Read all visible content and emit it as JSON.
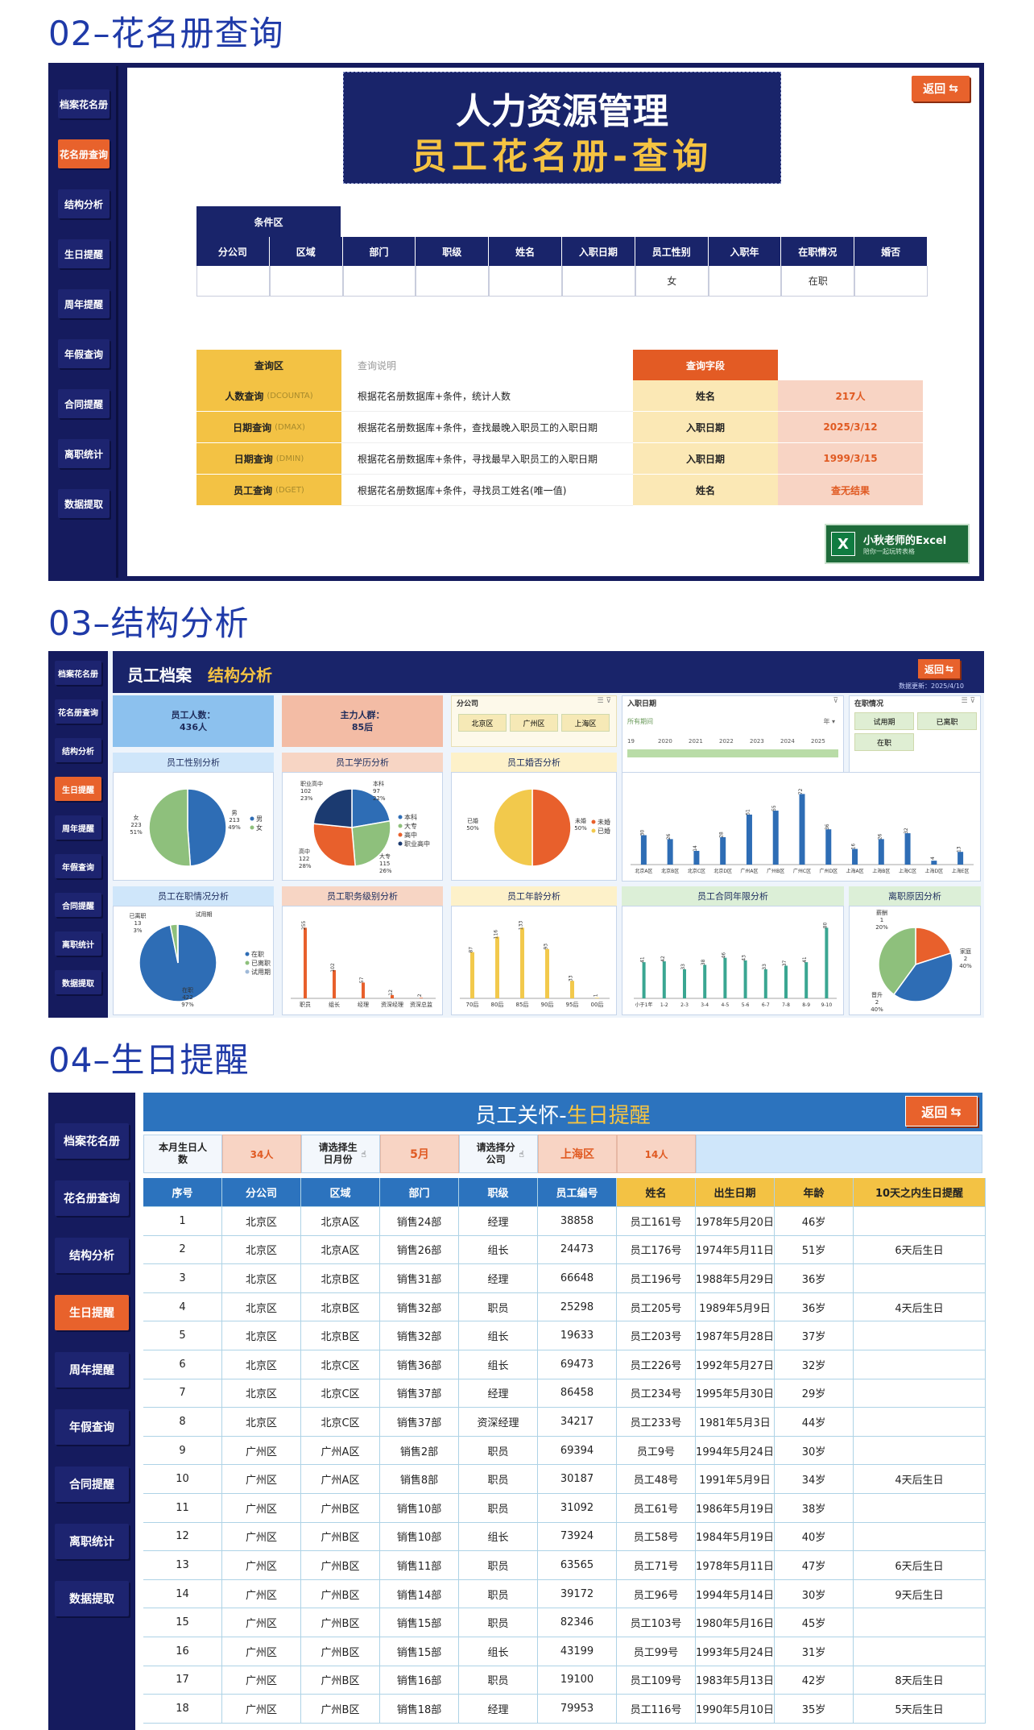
{
  "sections": {
    "s2": "02–花名册查询",
    "s3": "03–结构分析",
    "s4": "04–生日提醒"
  },
  "sidebar": [
    "档案花名册",
    "花名册查询",
    "结构分析",
    "生日提醒",
    "周年提醒",
    "年假查询",
    "合同提醒",
    "离职统计",
    "数据提取"
  ],
  "roster": {
    "title1": "人力资源管理",
    "title2": "员工花名册-查询",
    "back": "返回",
    "cond_label": "条件区",
    "cond_headers": [
      "分公司",
      "区域",
      "部门",
      "职级",
      "姓名",
      "入职日期",
      "员工性别",
      "入职年",
      "在职情况",
      "婚否"
    ],
    "cond_values": [
      "",
      "",
      "",
      "",
      "",
      "",
      "女",
      "",
      "在职",
      ""
    ],
    "q_header": "查询区",
    "q_desc_header": "查询说明",
    "q_field_header": "查询字段",
    "queries": [
      {
        "name": "人数查询",
        "fn": "(DCOUNTA)",
        "desc": "根据花名册数据库+条件，统计人数",
        "field": "姓名",
        "result": "217人"
      },
      {
        "name": "日期查询",
        "fn": "(DMAX)",
        "desc": "根据花名册数据库+条件，查找最晚入职员工的入职日期",
        "field": "入职日期",
        "result": "2025/3/12"
      },
      {
        "name": "日期查询",
        "fn": "(DMIN)",
        "desc": "根据花名册数据库+条件，寻找最早入职员工的入职日期",
        "field": "入职日期",
        "result": "1999/3/15"
      },
      {
        "name": "员工查询",
        "fn": "(DGET)",
        "desc": "根据花名册数据库+条件，寻找员工姓名(唯一值)",
        "field": "姓名",
        "result": "查无结果"
      }
    ],
    "logo_text": "小秋老师的Excel",
    "logo_sub": "陪你一起玩转表格"
  },
  "analysis": {
    "title_a": "员工档案",
    "title_b": "结构分析",
    "back": "返回",
    "updated": "数据更新：2025/4/10",
    "kpi1_label": "员工人数：",
    "kpi1_value": "436人",
    "kpi2_label": "主力人群：",
    "kpi2_value": "85后",
    "slicer_company": "分公司",
    "slicer_company_items": [
      "北京区",
      "广州区",
      "上海区"
    ],
    "slicer_date": "入职日期",
    "slicer_date_all": "所有期间",
    "slicer_date_unit": "年",
    "slicer_years": [
      "19",
      "2020",
      "2021",
      "2022",
      "2023",
      "2024",
      "2025"
    ],
    "slicer_status": "在职情况",
    "slicer_status_items": [
      "试用期",
      "已离职",
      "在职"
    ],
    "panel_titles": [
      "员工性别分析",
      "员工学历分析",
      "员工婚否分析",
      "员工在职情况分析",
      "员工职务级别分析",
      "员工年龄分析",
      "员工合同年限分析",
      "离职原因分析"
    ],
    "colors": {
      "blue": "#2e6db5",
      "green": "#8ec07c",
      "orange": "#e8602c",
      "yellow": "#f2c94c",
      "teal": "#3aa692",
      "navy": "#1b3a70"
    }
  },
  "chart_data": [
    {
      "type": "pie",
      "title": "员工性别分析",
      "labels": [
        "男",
        "女"
      ],
      "values": [
        213,
        223
      ],
      "percent_labels": [
        "49%",
        "51%"
      ],
      "legend": [
        "男",
        "女"
      ]
    },
    {
      "type": "pie",
      "title": "员工学历分析",
      "labels": [
        "本科",
        "大专",
        "高中",
        "职业高中"
      ],
      "values": [
        97,
        115,
        122,
        102
      ],
      "percent_labels": [
        "22%",
        "26%",
        "28%",
        "23%"
      ],
      "legend": [
        "本科",
        "大专",
        "高中",
        "职业高中"
      ]
    },
    {
      "type": "pie",
      "title": "员工婚否分析",
      "labels": [
        "未婚",
        "已婚"
      ],
      "values": [
        50,
        50
      ],
      "percent_labels": [
        "50%",
        "50%"
      ],
      "legend": [
        "未婚",
        "已婚"
      ]
    },
    {
      "type": "bar",
      "title": "",
      "categories": [
        "北京A区",
        "北京B区",
        "北京C区",
        "北京D区",
        "广州A区",
        "广州B区",
        "广州C区",
        "广州D区",
        "上海A区",
        "上海B区",
        "上海C区",
        "上海D区",
        "上海E区"
      ],
      "values": [
        30,
        26,
        14,
        28,
        51,
        55,
        72,
        36,
        16,
        26,
        32,
        4,
        13
      ]
    },
    {
      "type": "pie",
      "title": "员工在职情况分析",
      "labels": [
        "在职",
        "已离职",
        "试用期"
      ],
      "values": [
        422,
        13,
        1
      ],
      "percent_labels": [
        "97%",
        "3%",
        "0%"
      ],
      "legend": [
        "在职",
        "已离职",
        "试用期"
      ]
    },
    {
      "type": "bar",
      "title": "员工职务级别分析",
      "categories": [
        "职员",
        "组长",
        "经理",
        "资深经理",
        "资深总监"
      ],
      "values": [
        255,
        102,
        57,
        12,
        2
      ]
    },
    {
      "type": "bar",
      "title": "员工年龄分析",
      "categories": [
        "70后",
        "80后",
        "85后",
        "90后",
        "95后",
        "00后"
      ],
      "values": [
        87,
        116,
        133,
        93,
        33,
        1
      ]
    },
    {
      "type": "bar",
      "title": "员工合同年限分析",
      "categories": [
        "小于1年",
        "1-2",
        "2-3",
        "3-4",
        "4-5",
        "5-6",
        "6-7",
        "7-8",
        "8-9",
        "9-10"
      ],
      "values": [
        41,
        42,
        33,
        38,
        46,
        43,
        33,
        37,
        41,
        80
      ]
    },
    {
      "type": "pie",
      "title": "离职原因分析",
      "labels": [
        "薪酬",
        "家庭",
        "晋升"
      ],
      "values": [
        1,
        2,
        2
      ],
      "percent_labels": [
        "20%",
        "40%",
        "40%"
      ]
    }
  ],
  "birthday": {
    "title_a": "员工关怀-",
    "title_b": "生日提醒",
    "back": "返回",
    "info": [
      {
        "label": "本月生日人数",
        "value": "34人"
      },
      {
        "label": "请选择生日月份",
        "value": "5月"
      },
      {
        "label": "请选择分公司",
        "value": "上海区"
      },
      {
        "label": "",
        "value": "14人"
      }
    ],
    "headers": [
      "序号",
      "分公司",
      "区域",
      "部门",
      "职级",
      "员工编号",
      "姓名",
      "出生日期",
      "年龄",
      "10天之内生日提醒"
    ],
    "rows": [
      [
        "1",
        "北京区",
        "北京A区",
        "销售24部",
        "经理",
        "38858",
        "员工161号",
        "1978年5月20日",
        "46岁",
        ""
      ],
      [
        "2",
        "北京区",
        "北京A区",
        "销售26部",
        "组长",
        "24473",
        "员工176号",
        "1974年5月11日",
        "51岁",
        "6天后生日"
      ],
      [
        "3",
        "北京区",
        "北京B区",
        "销售31部",
        "经理",
        "66648",
        "员工196号",
        "1988年5月29日",
        "36岁",
        ""
      ],
      [
        "4",
        "北京区",
        "北京B区",
        "销售32部",
        "职员",
        "25298",
        "员工205号",
        "1989年5月9日",
        "36岁",
        "4天后生日"
      ],
      [
        "5",
        "北京区",
        "北京B区",
        "销售32部",
        "组长",
        "19633",
        "员工203号",
        "1987年5月28日",
        "37岁",
        ""
      ],
      [
        "6",
        "北京区",
        "北京C区",
        "销售36部",
        "组长",
        "69473",
        "员工226号",
        "1992年5月27日",
        "32岁",
        ""
      ],
      [
        "7",
        "北京区",
        "北京C区",
        "销售37部",
        "经理",
        "86458",
        "员工234号",
        "1995年5月30日",
        "29岁",
        ""
      ],
      [
        "8",
        "北京区",
        "北京C区",
        "销售37部",
        "资深经理",
        "34217",
        "员工233号",
        "1981年5月3日",
        "44岁",
        ""
      ],
      [
        "9",
        "广州区",
        "广州A区",
        "销售2部",
        "职员",
        "69394",
        "员工9号",
        "1994年5月24日",
        "30岁",
        ""
      ],
      [
        "10",
        "广州区",
        "广州A区",
        "销售8部",
        "职员",
        "30187",
        "员工48号",
        "1991年5月9日",
        "34岁",
        "4天后生日"
      ],
      [
        "11",
        "广州区",
        "广州B区",
        "销售10部",
        "职员",
        "31092",
        "员工61号",
        "1986年5月19日",
        "38岁",
        ""
      ],
      [
        "12",
        "广州区",
        "广州B区",
        "销售10部",
        "组长",
        "73924",
        "员工58号",
        "1984年5月19日",
        "40岁",
        ""
      ],
      [
        "13",
        "广州区",
        "广州B区",
        "销售11部",
        "职员",
        "63565",
        "员工71号",
        "1978年5月11日",
        "47岁",
        "6天后生日"
      ],
      [
        "14",
        "广州区",
        "广州B区",
        "销售14部",
        "职员",
        "39172",
        "员工96号",
        "1994年5月14日",
        "30岁",
        "9天后生日"
      ],
      [
        "15",
        "广州区",
        "广州B区",
        "销售15部",
        "职员",
        "82346",
        "员工103号",
        "1980年5月16日",
        "45岁",
        ""
      ],
      [
        "16",
        "广州区",
        "广州B区",
        "销售15部",
        "组长",
        "43199",
        "员工99号",
        "1993年5月24日",
        "31岁",
        ""
      ],
      [
        "17",
        "广州区",
        "广州B区",
        "销售16部",
        "职员",
        "19100",
        "员工109号",
        "1983年5月13日",
        "42岁",
        "8天后生日"
      ],
      [
        "18",
        "广州区",
        "广州B区",
        "销售18部",
        "经理",
        "79953",
        "员工116号",
        "1990年5月10日",
        "35岁",
        "5天后生日"
      ]
    ]
  }
}
